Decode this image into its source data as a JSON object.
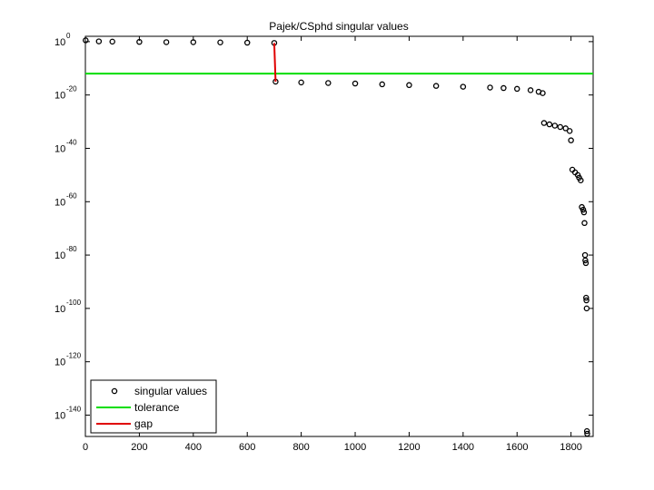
{
  "chart_data": {
    "type": "scatter",
    "title": "Pajek/CSphd singular values",
    "xlabel": "",
    "ylabel": "",
    "y_scale": "log10",
    "xlim": [
      0,
      1882
    ],
    "ylim_exponent": [
      -148,
      2
    ],
    "x_ticks": [
      0,
      200,
      400,
      600,
      800,
      1000,
      1200,
      1400,
      1600,
      1800
    ],
    "y_tick_exponents": [
      0,
      -20,
      -40,
      -60,
      -80,
      -100,
      -120,
      -140
    ],
    "y_tick_base": "10",
    "grid": false,
    "legend_placement": "bottom-left",
    "series": [
      {
        "name": "singular values",
        "marker": "circle",
        "color": "#000000",
        "x": [
          1,
          50,
          100,
          200,
          300,
          400,
          500,
          600,
          700,
          705,
          800,
          900,
          1000,
          1100,
          1200,
          1300,
          1400,
          1500,
          1550,
          1600,
          1650,
          1680,
          1695,
          1700,
          1720,
          1740,
          1760,
          1780,
          1795,
          1800,
          1805,
          1815,
          1825,
          1830,
          1836,
          1840,
          1845,
          1848,
          1850,
          1852,
          1853,
          1855,
          1856,
          1857,
          1858,
          1859,
          1860
        ],
        "y_exponent": [
          0.5,
          0.1,
          0.0,
          -0.1,
          -0.2,
          -0.2,
          -0.3,
          -0.4,
          -0.5,
          -15.0,
          -15.3,
          -15.5,
          -15.7,
          -16.0,
          -16.3,
          -16.6,
          -16.9,
          -17.2,
          -17.4,
          -17.7,
          -18.2,
          -18.8,
          -19.3,
          -30.5,
          -31.0,
          -31.5,
          -32.0,
          -32.5,
          -33.5,
          -37.0,
          -48.0,
          -49.0,
          -50.0,
          -51.0,
          -52.0,
          -62.0,
          -63.0,
          -64.0,
          -68.0,
          -80.0,
          -82.0,
          -83.0,
          -96.0,
          -97.0,
          -100.0,
          -146.0,
          -147.0
        ]
      },
      {
        "name": "tolerance",
        "color": "#00dd00",
        "y_exponent_constant": -12
      },
      {
        "name": "gap",
        "color": "#e00000",
        "x": [
          700,
          705
        ],
        "y_exponent": [
          -0.5,
          -15.0
        ]
      }
    ]
  }
}
